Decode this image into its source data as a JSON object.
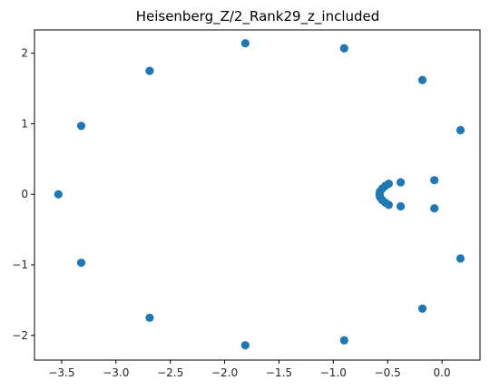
{
  "chart_data": {
    "type": "scatter",
    "title": "Heisenberg_Z/2_Rank29_z_included",
    "xlabel": "",
    "ylabel": "",
    "xlim": [
      -3.75,
      0.35
    ],
    "ylim": [
      -2.35,
      2.33
    ],
    "grid": false,
    "marker_color": "#1f77b4",
    "x_ticks": [
      {
        "value": -3.5,
        "label": "−3.5"
      },
      {
        "value": -3.0,
        "label": "−3.0"
      },
      {
        "value": -2.5,
        "label": "−2.5"
      },
      {
        "value": -2.0,
        "label": "−2.0"
      },
      {
        "value": -1.5,
        "label": "−1.5"
      },
      {
        "value": -1.0,
        "label": "−1.0"
      },
      {
        "value": -0.5,
        "label": "−0.5"
      },
      {
        "value": 0.0,
        "label": "0.0"
      }
    ],
    "y_ticks": [
      {
        "value": 2,
        "label": "2"
      },
      {
        "value": 1,
        "label": "1"
      },
      {
        "value": 0,
        "label": "0"
      },
      {
        "value": -1,
        "label": "−1"
      },
      {
        "value": -2,
        "label": "−2"
      }
    ],
    "points": [
      {
        "x": -3.53,
        "y": 0.0
      },
      {
        "x": -3.32,
        "y": 0.97
      },
      {
        "x": -3.32,
        "y": -0.97
      },
      {
        "x": -2.69,
        "y": 1.75
      },
      {
        "x": -2.69,
        "y": -1.75
      },
      {
        "x": -1.81,
        "y": 2.14
      },
      {
        "x": -1.81,
        "y": -2.14
      },
      {
        "x": -0.9,
        "y": 2.07
      },
      {
        "x": -0.9,
        "y": -2.07
      },
      {
        "x": -0.18,
        "y": 1.62
      },
      {
        "x": -0.18,
        "y": -1.62
      },
      {
        "x": 0.17,
        "y": 0.91
      },
      {
        "x": 0.17,
        "y": -0.91
      },
      {
        "x": -0.07,
        "y": 0.2
      },
      {
        "x": -0.07,
        "y": -0.2
      },
      {
        "x": -0.38,
        "y": 0.17
      },
      {
        "x": -0.38,
        "y": -0.17
      },
      {
        "x": -0.49,
        "y": 0.15
      },
      {
        "x": -0.49,
        "y": -0.15
      },
      {
        "x": -0.52,
        "y": 0.12
      },
      {
        "x": -0.52,
        "y": -0.12
      },
      {
        "x": -0.55,
        "y": 0.08
      },
      {
        "x": -0.55,
        "y": -0.08
      },
      {
        "x": -0.57,
        "y": 0.04
      },
      {
        "x": -0.57,
        "y": -0.04
      },
      {
        "x": -0.575,
        "y": 0.0
      }
    ]
  }
}
